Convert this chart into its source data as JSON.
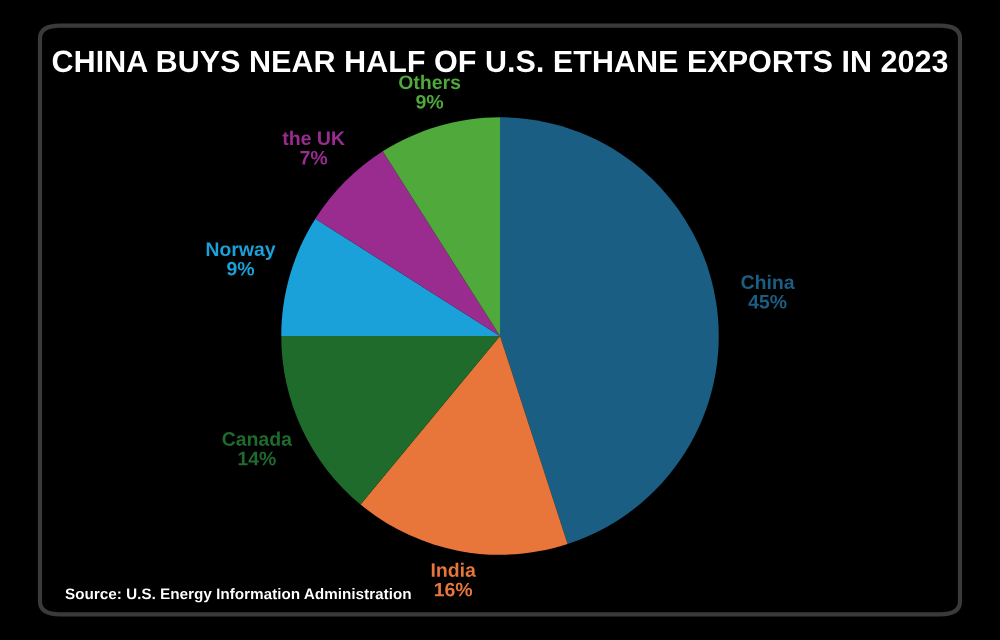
{
  "chart_data": {
    "type": "pie",
    "title": "CHINA BUYS NEAR HALF OF U.S. ETHANE EXPORTS IN 2023",
    "categories": [
      "China",
      "India",
      "Canada",
      "Norway",
      "the UK",
      "Others"
    ],
    "values": [
      45,
      16,
      14,
      9,
      7,
      9
    ],
    "value_labels": [
      "45%",
      "16%",
      "14%",
      "9%",
      "7%",
      "9%"
    ],
    "colors": [
      "#1b5e84",
      "#e8763a",
      "#1f6b2c",
      "#1ba1d9",
      "#9a2c90",
      "#50a93b"
    ],
    "annotations": [
      "Source: U.S. Energy Information Administration"
    ]
  }
}
